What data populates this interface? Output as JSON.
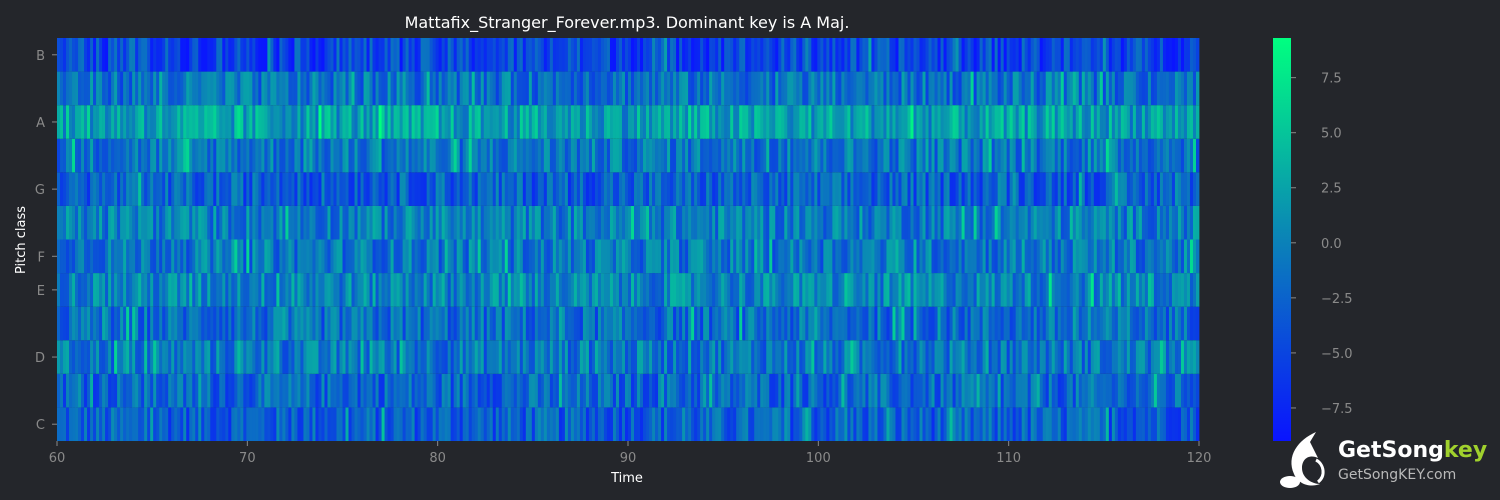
{
  "chart_data": {
    "type": "heatmap",
    "title": "Mattafix_Stranger_Forever.mp3. Dominant key is A Maj.",
    "xlabel": "Time",
    "ylabel": "Pitch class",
    "xlim": [
      60,
      120
    ],
    "x_ticks": [
      "60",
      "70",
      "80",
      "90",
      "100",
      "110",
      "120"
    ],
    "rows": [
      "C",
      "C#",
      "D",
      "D#",
      "E",
      "F",
      "F#",
      "G",
      "G#",
      "A",
      "A#",
      "B"
    ],
    "y_tick_labels": [
      "C",
      "D",
      "E",
      "F",
      "G",
      "A",
      "B"
    ],
    "row_profile": [
      -3.0,
      -2.5,
      -1.0,
      -2.0,
      0.0,
      -1.0,
      -0.5,
      -3.0,
      -1.0,
      2.0,
      -1.5,
      -5.0
    ],
    "colorbar": {
      "min": -9.0,
      "max": 9.3,
      "ticks": [
        "7.5",
        "5.0",
        "2.5",
        "0.0",
        "−2.5",
        "−5.0",
        "−7.5"
      ],
      "colors": [
        "#0a14ff",
        "#0b83b7",
        "#00ff80"
      ]
    }
  },
  "logo": {
    "brand_main": "GetSong",
    "brand_accent": "key",
    "url": "GetSongKEY.com"
  }
}
